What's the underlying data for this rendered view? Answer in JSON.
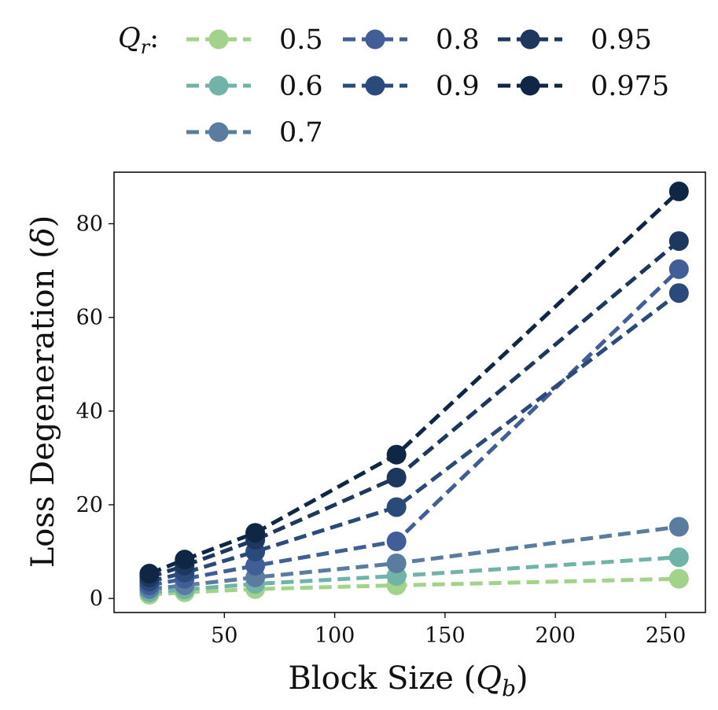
{
  "chart_data": {
    "type": "line",
    "title": "",
    "xlabel": "Block Size (",
    "xlabel_var": "Q",
    "xlabel_sub": "b",
    "xlabel_close": ")",
    "ylabel": "Loss Degeneration (",
    "ylabel_var": "δ",
    "ylabel_close": ")",
    "xlim": [
      0,
      268
    ],
    "ylim": [
      -3,
      91
    ],
    "xticks": [
      50,
      100,
      150,
      200,
      250
    ],
    "yticks": [
      0,
      20,
      40,
      60,
      80
    ],
    "legend_title": "Q",
    "legend_title_sub": "r",
    "legend_title_suffix": ":",
    "legend_position": "top",
    "x": [
      16,
      32,
      64,
      128,
      256
    ],
    "series": [
      {
        "name": "0.5",
        "color": "#a3d28a",
        "values": [
          0.8,
          1.3,
          2.0,
          2.8,
          4.2
        ]
      },
      {
        "name": "0.6",
        "color": "#72b3a9",
        "values": [
          1.3,
          1.9,
          3.1,
          4.8,
          8.8
        ]
      },
      {
        "name": "0.7",
        "color": "#5a7c9e",
        "values": [
          2.0,
          2.8,
          4.5,
          7.5,
          15.3
        ]
      },
      {
        "name": "0.8",
        "color": "#415e98",
        "values": [
          2.8,
          4.2,
          7.0,
          12.2,
          70.3
        ]
      },
      {
        "name": "0.9",
        "color": "#2b4a7c",
        "values": [
          3.6,
          5.5,
          10.0,
          19.5,
          65.2
        ]
      },
      {
        "name": "0.95",
        "color": "#1d375f",
        "values": [
          4.5,
          7.0,
          12.5,
          25.8,
          76.3
        ]
      },
      {
        "name": "0.975",
        "color": "#0f2645",
        "values": [
          5.3,
          8.3,
          14.0,
          30.7,
          86.9
        ]
      }
    ]
  }
}
